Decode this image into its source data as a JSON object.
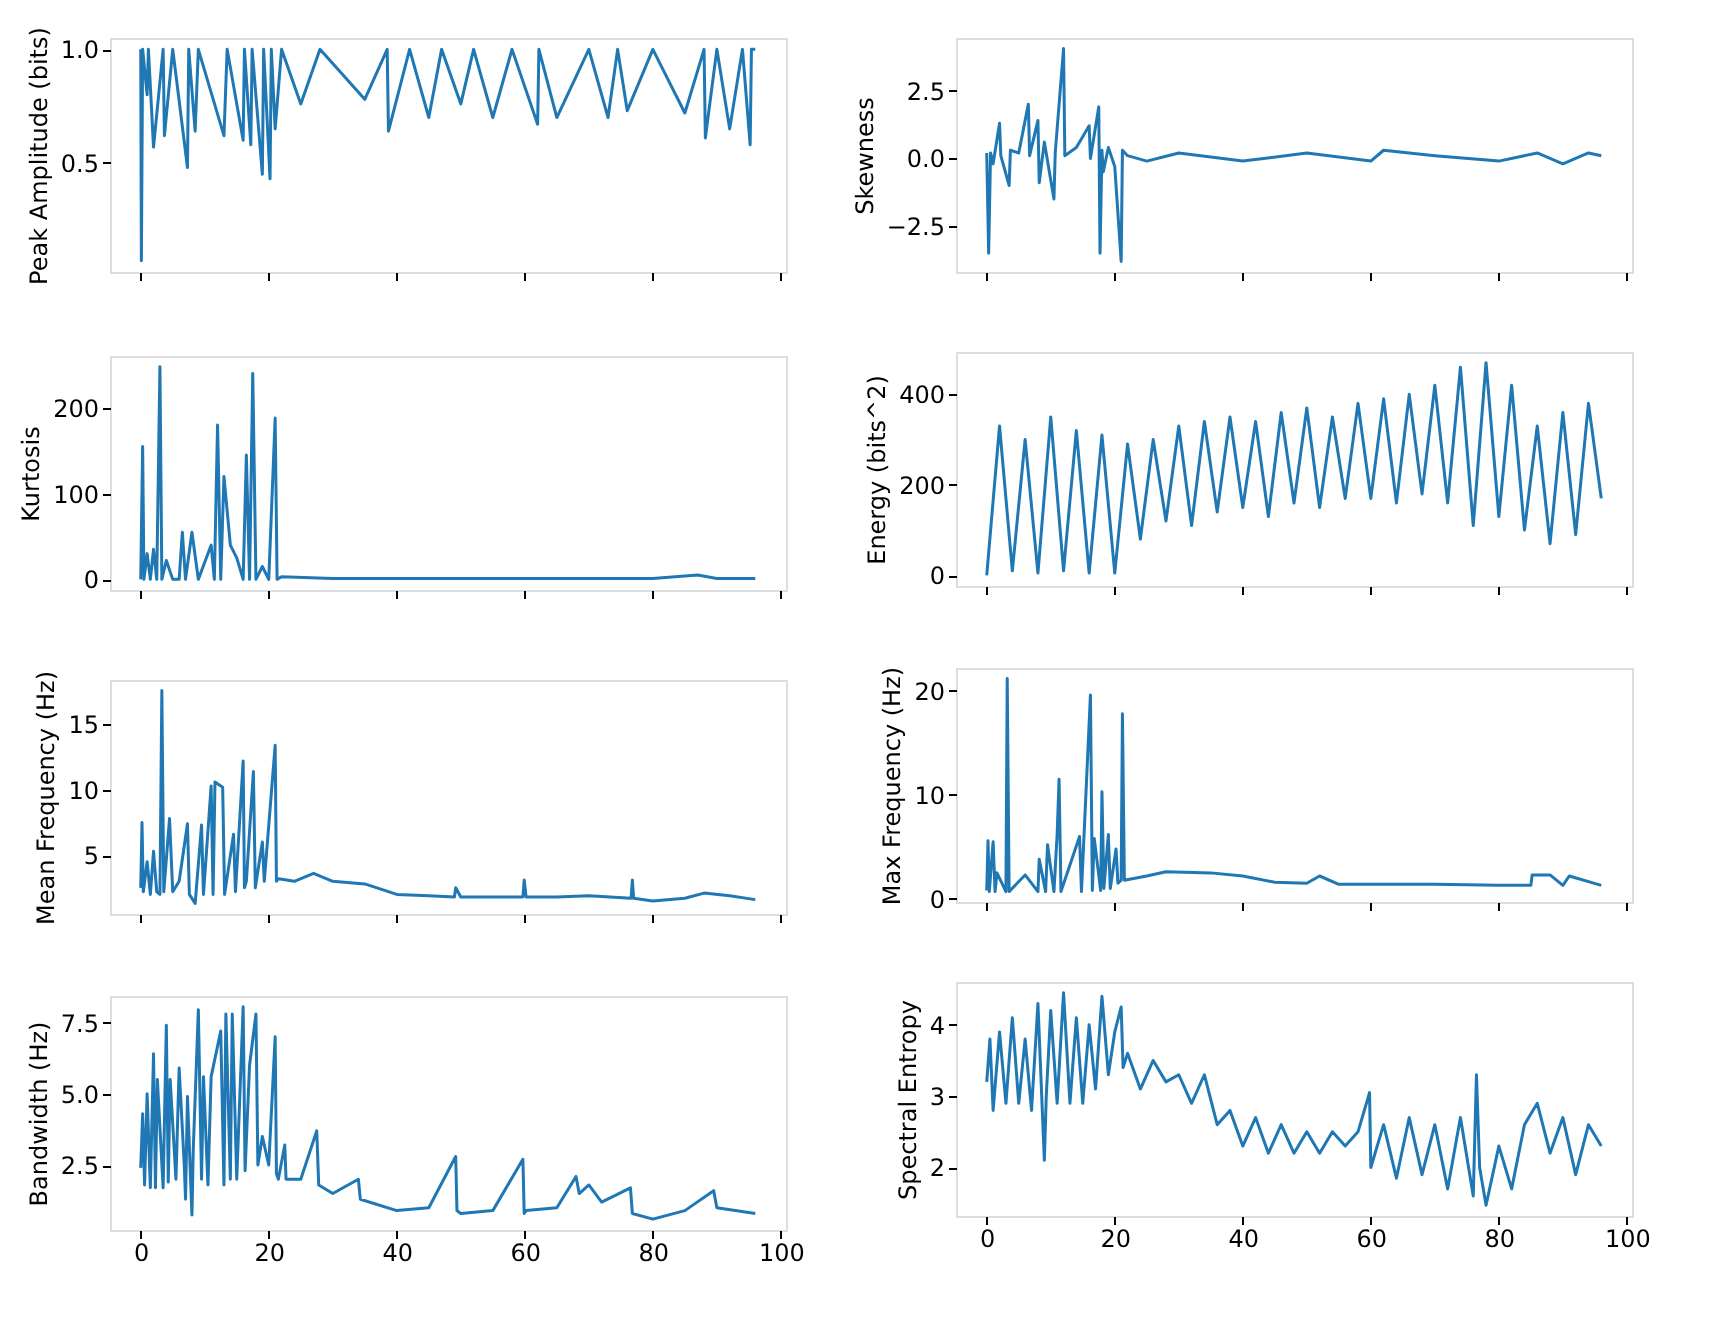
{
  "chart_data": [
    {
      "type": "line",
      "ylabel": "Peak Amplitude (bits)",
      "grid": false,
      "tick_labels": "y",
      "xlim": [
        -4.8,
        100.8
      ],
      "xticks": [
        0,
        20,
        40,
        60,
        80,
        100
      ],
      "ylim": [
        0.02,
        1.05
      ],
      "yticks": [
        0.5,
        {
          "value": 1,
          "label": "1.0"
        }
      ],
      "x": [
        0,
        0.1,
        0.3,
        1.0,
        1.2,
        2,
        3.5,
        3.7,
        5,
        7.3,
        7.5,
        8.5,
        9,
        13,
        13.5,
        16,
        16.2,
        17.2,
        17.4,
        19,
        19.2,
        20.2,
        20.4,
        21,
        22,
        25,
        28,
        35,
        38.5,
        38.7,
        42,
        45,
        47,
        50,
        52,
        55,
        58,
        62,
        62.2,
        65,
        70,
        73,
        74.5,
        76,
        80,
        85,
        88,
        88.2,
        90,
        92,
        94,
        95.2,
        95.4,
        96
      ],
      "series": [
        {
          "color": "#1f77b4",
          "values": [
            1.0,
            0.07,
            1.0,
            0.8,
            1.0,
            0.57,
            1.0,
            0.62,
            1.0,
            0.48,
            1.0,
            0.64,
            1.0,
            0.62,
            1.0,
            0.6,
            1.0,
            0.58,
            1.0,
            0.45,
            1.0,
            0.43,
            1.0,
            0.65,
            1.0,
            0.76,
            1.0,
            0.78,
            1.0,
            0.64,
            1.0,
            0.7,
            1.0,
            0.76,
            1.0,
            0.7,
            1.0,
            0.67,
            1.0,
            0.7,
            1.0,
            0.7,
            1.0,
            0.73,
            1.0,
            0.72,
            1.0,
            0.61,
            1.0,
            0.65,
            1.0,
            0.58,
            1.0,
            1.0
          ]
        }
      ]
    },
    {
      "type": "line",
      "ylabel": "Skewness",
      "grid": false,
      "tick_labels": "y",
      "xlim": [
        -4.8,
        100.8
      ],
      "xticks": [
        0,
        20,
        40,
        60,
        80,
        100
      ],
      "ylim": [
        -4.19,
        4.44
      ],
      "yticks": [
        {
          "value": -2.5,
          "label": "−2.5"
        },
        {
          "value": 0,
          "label": "0.0"
        },
        2.5
      ],
      "x": [
        0,
        0.3,
        0.6,
        1,
        2,
        2.2,
        3.5,
        3.7,
        5,
        6.5,
        6.7,
        8,
        8.2,
        9,
        10.5,
        10.7,
        12,
        12.2,
        14,
        16,
        16.2,
        17.5,
        17.7,
        18,
        18.2,
        19,
        20,
        21,
        21.2,
        22,
        25,
        30,
        40,
        50,
        60,
        62,
        70,
        80,
        86,
        90,
        94,
        96
      ],
      "series": [
        {
          "color": "#1f77b4",
          "values": [
            0.2,
            -3.5,
            0.2,
            -0.2,
            1.3,
            0.1,
            -1.0,
            0.3,
            0.2,
            2.0,
            0.1,
            1.4,
            -0.9,
            0.6,
            -1.5,
            0.2,
            4.05,
            0.1,
            0.4,
            1.2,
            0.0,
            1.9,
            -3.5,
            0.3,
            -0.5,
            0.4,
            -0.3,
            -3.8,
            0.3,
            0.1,
            -0.1,
            0.2,
            -0.1,
            0.2,
            -0.1,
            0.3,
            0.1,
            -0.1,
            0.2,
            -0.2,
            0.2,
            0.1
          ]
        }
      ]
    },
    {
      "type": "line",
      "ylabel": "Kurtosis",
      "grid": false,
      "tick_labels": "y",
      "xlim": [
        -4.8,
        100.8
      ],
      "xticks": [
        0,
        20,
        40,
        60,
        80,
        100
      ],
      "ylim": [
        -12.4,
        260.4
      ],
      "yticks": [
        0,
        100,
        200
      ],
      "x": [
        0,
        0.3,
        0.5,
        1,
        1.5,
        2,
        2.5,
        3,
        3.3,
        4,
        5,
        6,
        6.5,
        7,
        8,
        9,
        10,
        11,
        11.5,
        12,
        12.5,
        13,
        14,
        15,
        16,
        16.5,
        17,
        17.5,
        18,
        19,
        20,
        21,
        21.3,
        22,
        30,
        50,
        70,
        80,
        87,
        90,
        96
      ],
      "series": [
        {
          "color": "#1f77b4",
          "values": [
            0,
            155,
            0,
            30,
            0,
            35,
            0,
            248,
            0,
            22,
            0,
            0,
            55,
            0,
            55,
            0,
            20,
            40,
            0,
            180,
            0,
            120,
            40,
            25,
            0,
            145,
            0,
            240,
            0,
            15,
            0,
            188,
            0,
            3,
            1,
            1,
            1,
            1,
            5,
            1,
            1
          ]
        }
      ]
    },
    {
      "type": "line",
      "ylabel": "Energy (bits^2)",
      "grid": false,
      "tick_labels": "y",
      "xlim": [
        -4.8,
        100.8
      ],
      "xticks": [
        0,
        20,
        40,
        60,
        80,
        100
      ],
      "ylim": [
        -23.5,
        493.5
      ],
      "yticks": [
        0,
        200,
        400
      ],
      "x": [
        0,
        2,
        4,
        6,
        8,
        10,
        12,
        14,
        16,
        18,
        20,
        22,
        24,
        26,
        28,
        30,
        32,
        34,
        36,
        38,
        40,
        42,
        44,
        46,
        48,
        50,
        52,
        54,
        56,
        58,
        60,
        62,
        64,
        66,
        68,
        70,
        72,
        74,
        76,
        78,
        80,
        82,
        84,
        86,
        88,
        90,
        92,
        94,
        96
      ],
      "series": [
        {
          "color": "#1f77b4",
          "values": [
            0,
            330,
            10,
            300,
            5,
            350,
            10,
            320,
            5,
            310,
            5,
            290,
            80,
            300,
            120,
            330,
            110,
            340,
            140,
            350,
            150,
            340,
            130,
            360,
            160,
            370,
            150,
            350,
            170,
            380,
            170,
            390,
            160,
            400,
            180,
            420,
            160,
            460,
            110,
            470,
            130,
            420,
            100,
            330,
            70,
            360,
            90,
            380,
            170
          ]
        }
      ]
    },
    {
      "type": "line",
      "ylabel": "Mean Frequency (Hz)",
      "grid": false,
      "tick_labels": "y",
      "xlim": [
        -4.8,
        100.8
      ],
      "xticks": [
        0,
        20,
        40,
        60,
        80,
        100
      ],
      "ylim": [
        0.5,
        18.4
      ],
      "yticks": [
        5,
        10,
        15
      ],
      "x": [
        0,
        0.2,
        0.4,
        1,
        1.5,
        2,
        2.5,
        3,
        3.3,
        3.6,
        4.5,
        5,
        6,
        7.3,
        7.6,
        8.5,
        9.5,
        9.8,
        11,
        11.3,
        11.6,
        12.8,
        13.1,
        14.5,
        14.8,
        16,
        16.2,
        16.5,
        17.6,
        17.9,
        19,
        19.3,
        21,
        21.2,
        21.5,
        24,
        27,
        30,
        35,
        40,
        45,
        49,
        49.2,
        50,
        55,
        59.7,
        59.9,
        60.2,
        65,
        70,
        76.6,
        76.8,
        77,
        80,
        85,
        88,
        92,
        96
      ],
      "series": [
        {
          "color": "#1f77b4",
          "values": [
            2.5,
            7.5,
            2.2,
            4.5,
            2,
            5.3,
            2.2,
            2,
            17.6,
            2.2,
            7.8,
            2.2,
            3,
            7.4,
            2,
            1.3,
            7.3,
            2,
            10.3,
            2,
            10.6,
            10.2,
            2,
            6.6,
            2.2,
            12.2,
            2.5,
            3,
            11.4,
            2.5,
            6,
            3,
            13.4,
            3,
            3.2,
            3,
            3.6,
            3,
            2.8,
            2,
            1.9,
            1.8,
            2.5,
            1.8,
            1.8,
            1.8,
            3.1,
            1.8,
            1.8,
            1.9,
            1.7,
            3.1,
            1.7,
            1.5,
            1.7,
            2.1,
            1.9,
            1.6
          ]
        }
      ]
    },
    {
      "type": "line",
      "ylabel": "Max Frequency (Hz)",
      "grid": false,
      "tick_labels": "y",
      "xlim": [
        -4.8,
        100.8
      ],
      "xticks": [
        0,
        20,
        40,
        60,
        80,
        100
      ],
      "ylim": [
        -0.3,
        22.2
      ],
      "yticks": [
        0,
        10,
        20
      ],
      "x": [
        0,
        0.2,
        0.4,
        1,
        1.3,
        1.6,
        3,
        3.2,
        3.5,
        6,
        8,
        8.2,
        9.2,
        9.5,
        10.5,
        11,
        11.3,
        11.6,
        14.5,
        14.8,
        16.2,
        16.5,
        16.8,
        17.8,
        18,
        18.3,
        19,
        19.3,
        20.2,
        20.5,
        21,
        21.2,
        21.5,
        25,
        28,
        35,
        40,
        45,
        50,
        52,
        55,
        60,
        70,
        80,
        85,
        85.2,
        88,
        90,
        91,
        96
      ],
      "series": [
        {
          "color": "#1f77b4",
          "values": [
            0.8,
            5.6,
            0.7,
            5.5,
            0.7,
            2.5,
            0.7,
            21.2,
            0.7,
            2.3,
            0.7,
            3.8,
            0.7,
            5.2,
            0.7,
            6.2,
            11.5,
            0.7,
            6,
            0.7,
            19.6,
            0.8,
            5.8,
            0.8,
            10.3,
            1,
            6.2,
            1,
            4.8,
            1.5,
            1.8,
            17.8,
            1.8,
            2.2,
            2.6,
            2.5,
            2.2,
            1.6,
            1.5,
            2.2,
            1.4,
            1.4,
            1.4,
            1.3,
            1.3,
            2.3,
            2.3,
            1.3,
            2.2,
            1.3
          ]
        }
      ]
    },
    {
      "type": "line",
      "ylabel": "Bandwidth (Hz)",
      "grid": false,
      "xlim": [
        -4.8,
        100.8
      ],
      "xticks": [
        0,
        20,
        40,
        60,
        80,
        100
      ],
      "ylim": [
        0.22,
        8.43
      ],
      "yticks": [
        2.5,
        {
          "value": 5,
          "label": "5.0"
        },
        7.5
      ],
      "x": [
        0,
        0.3,
        0.6,
        1,
        1.5,
        2,
        2.3,
        2.6,
        3.5,
        4,
        4.3,
        4.6,
        5.5,
        6,
        6.8,
        7,
        7.3,
        8,
        8.2,
        9,
        9.5,
        9.8,
        10.5,
        11,
        12.5,
        13,
        13.3,
        14,
        14.3,
        15,
        16,
        16.3,
        17,
        18,
        18.3,
        19,
        20,
        21,
        21.2,
        21.5,
        22.5,
        22.7,
        25,
        27.5,
        27.8,
        30,
        34,
        34.3,
        40,
        45,
        49.2,
        49.4,
        50,
        55,
        59.7,
        59.9,
        60.2,
        65,
        68,
        68.5,
        70,
        72,
        76.5,
        76.8,
        80,
        85,
        89.5,
        90,
        96
      ],
      "series": [
        {
          "color": "#1f77b4",
          "values": [
            2.4,
            4.3,
            1.8,
            5,
            1.7,
            6.4,
            1.7,
            5.5,
            1.7,
            7.4,
            1.9,
            5.5,
            2,
            5.9,
            2.5,
            1.3,
            4.9,
            0.75,
            3.0,
            7.95,
            2.0,
            5.6,
            1.8,
            5.6,
            7.2,
            1.8,
            7.8,
            2,
            7.8,
            2,
            8.05,
            2.3,
            6,
            7.8,
            2.5,
            3.5,
            2.5,
            7,
            2.2,
            2,
            3.2,
            2,
            2,
            3.7,
            1.8,
            1.5,
            2.0,
            1.3,
            0.9,
            1.0,
            2.8,
            0.9,
            0.8,
            0.9,
            2.7,
            0.8,
            0.9,
            1.0,
            2.1,
            1.5,
            1.8,
            1.2,
            1.7,
            0.8,
            0.6,
            0.9,
            1.6,
            1.0,
            0.8
          ]
        }
      ]
    },
    {
      "type": "line",
      "ylabel": "Spectral Entropy",
      "grid": false,
      "xlim": [
        -4.8,
        100.8
      ],
      "xticks": [
        0,
        20,
        40,
        60,
        80,
        100
      ],
      "ylim": [
        1.32,
        4.6
      ],
      "yticks": [
        2,
        3,
        4
      ],
      "x": [
        0,
        0.5,
        1,
        2,
        3,
        4,
        5,
        6,
        7,
        8,
        9,
        9.3,
        10,
        11,
        12,
        13,
        14,
        15,
        16,
        17,
        18,
        19,
        20,
        21,
        21.3,
        22,
        24,
        26,
        28,
        30,
        32,
        34,
        36,
        38,
        40,
        42,
        44,
        46,
        48,
        50,
        52,
        54,
        56,
        58,
        59.8,
        60,
        62,
        64,
        66,
        68,
        70,
        72,
        74,
        76,
        76.5,
        77,
        78,
        80,
        82,
        84,
        86,
        88,
        90,
        92,
        94,
        96
      ],
      "series": [
        {
          "color": "#1f77b4",
          "values": [
            3.2,
            3.8,
            2.8,
            3.9,
            2.9,
            4.1,
            2.9,
            3.8,
            2.8,
            4.3,
            2.1,
            3.0,
            4.2,
            2.9,
            4.45,
            2.9,
            4.1,
            2.9,
            4.0,
            3.1,
            4.4,
            3.3,
            3.9,
            4.25,
            3.4,
            3.6,
            3.1,
            3.5,
            3.2,
            3.3,
            2.9,
            3.3,
            2.6,
            2.8,
            2.3,
            2.7,
            2.2,
            2.6,
            2.2,
            2.5,
            2.2,
            2.5,
            2.3,
            2.5,
            3.05,
            2.0,
            2.6,
            1.85,
            2.7,
            1.9,
            2.6,
            1.7,
            2.7,
            1.6,
            3.3,
            2.0,
            1.47,
            2.3,
            1.7,
            2.6,
            2.9,
            2.2,
            2.7,
            1.9,
            2.6,
            2.3
          ]
        }
      ]
    }
  ]
}
